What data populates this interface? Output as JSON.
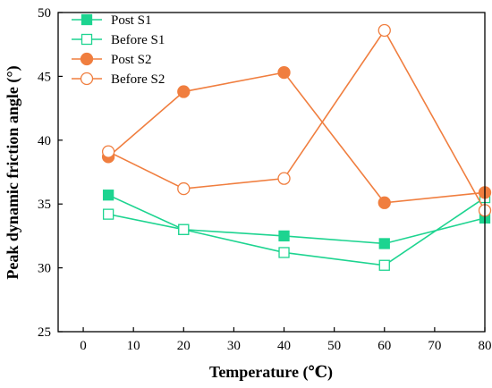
{
  "chart_data": {
    "type": "line",
    "xlabel": "Temperature (℃)",
    "ylabel": "Peak dynamic friction angle (°)",
    "xlim": [
      -5,
      80
    ],
    "ylim": [
      25,
      50
    ],
    "xticks": [
      0,
      10,
      20,
      30,
      40,
      50,
      60,
      70,
      80
    ],
    "yticks": [
      25,
      30,
      35,
      40,
      45,
      50
    ],
    "x": [
      5,
      20,
      40,
      60,
      80
    ],
    "grid": false,
    "legend_position": "top-left",
    "series": [
      {
        "name": "Post S1",
        "values": [
          35.7,
          33.0,
          32.5,
          31.9,
          33.9
        ],
        "color": "#1dd490",
        "marker": "square",
        "filled": true
      },
      {
        "name": "Before S1",
        "values": [
          34.2,
          33.0,
          31.2,
          30.2,
          35.5
        ],
        "color": "#1dd490",
        "marker": "square",
        "filled": false
      },
      {
        "name": "Post S2",
        "values": [
          38.7,
          43.8,
          45.3,
          35.1,
          35.9
        ],
        "color": "#f07e3f",
        "marker": "circle",
        "filled": true
      },
      {
        "name": "Before S2",
        "values": [
          39.1,
          36.2,
          37.0,
          48.6,
          34.5
        ],
        "color": "#f07e3f",
        "marker": "circle",
        "filled": false
      }
    ]
  }
}
